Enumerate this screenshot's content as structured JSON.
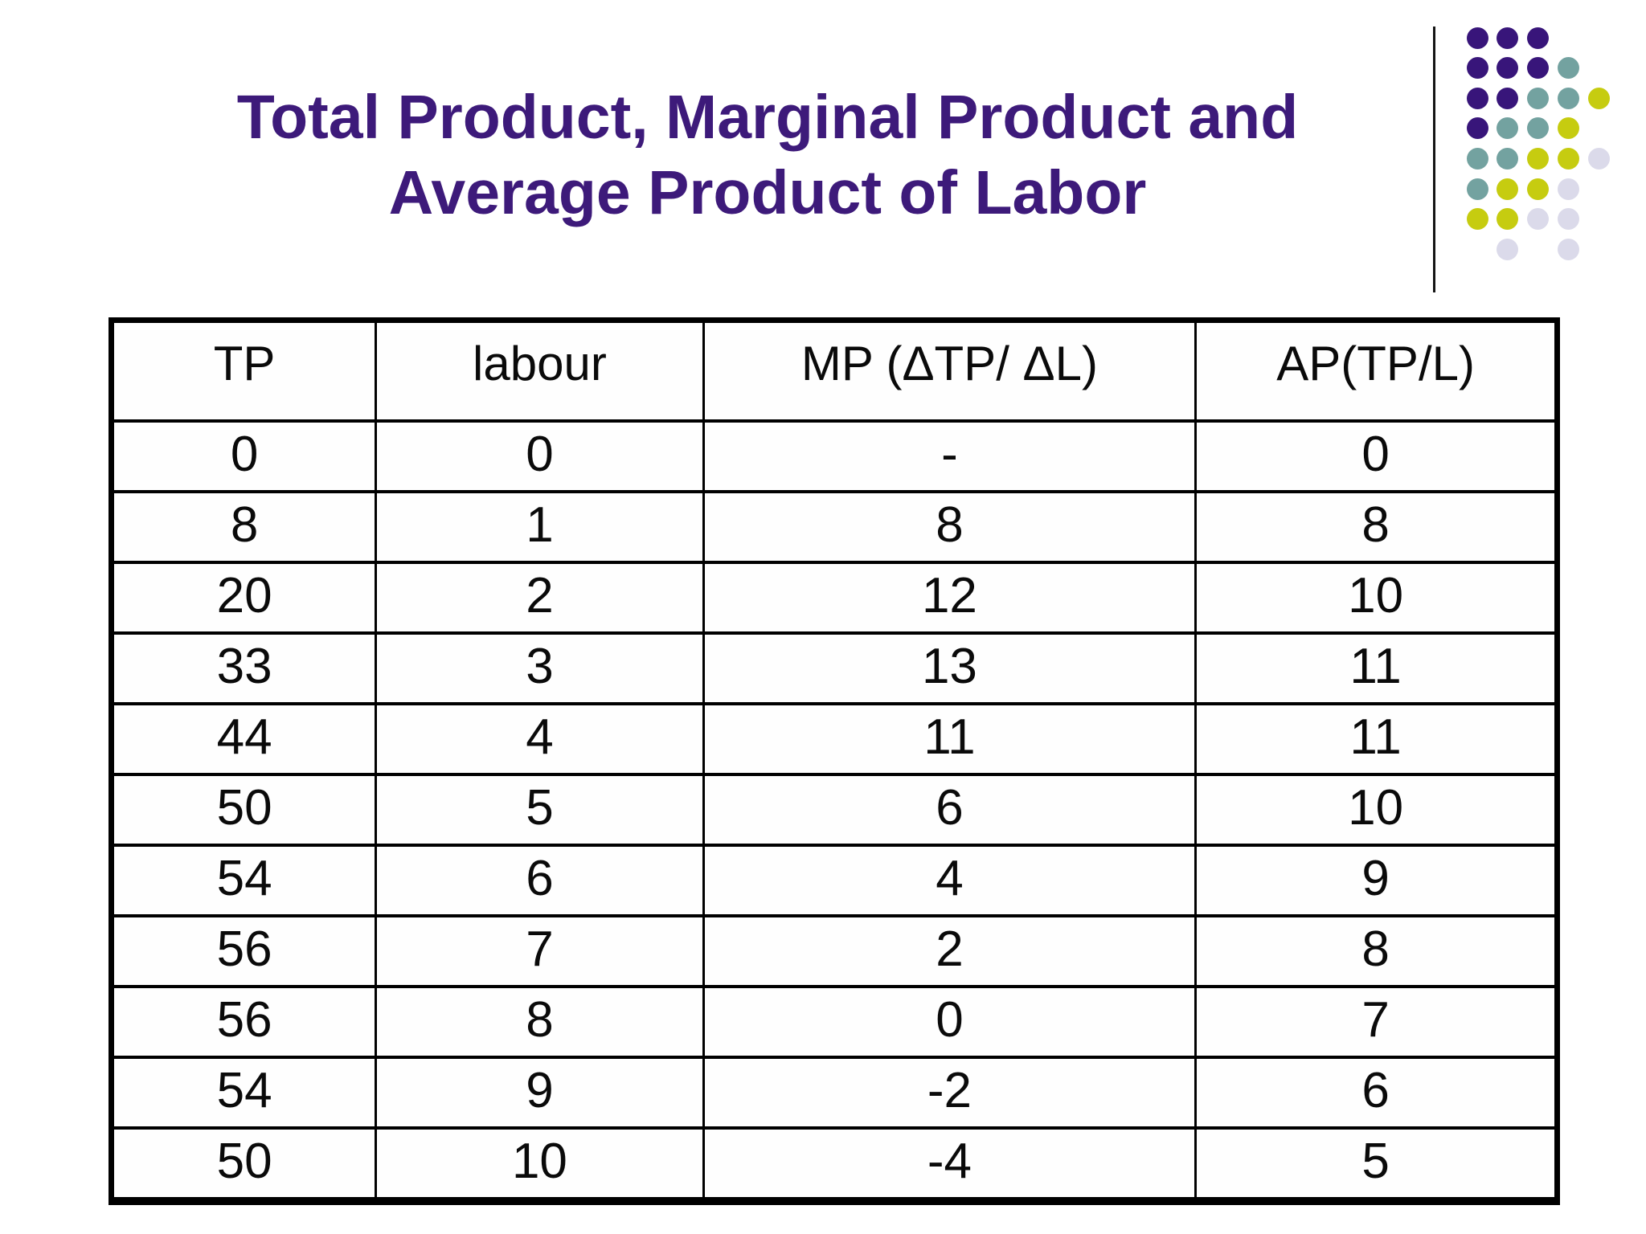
{
  "slide": {
    "title": {
      "line1": "Total Product, Marginal Product and",
      "line2": "Average Product of Labor",
      "color": "#3d1a7a"
    }
  },
  "table": {
    "headers": [
      "TP",
      "labour",
      "MP (ΔTP/ ΔL)",
      "AP(TP/L)"
    ],
    "rows": [
      [
        "0",
        "0",
        "-",
        "0"
      ],
      [
        "8",
        "1",
        "8",
        "8"
      ],
      [
        "20",
        "2",
        "12",
        "10"
      ],
      [
        "33",
        "3",
        "13",
        "11"
      ],
      [
        "44",
        "4",
        "11",
        "11"
      ],
      [
        "50",
        "5",
        "6",
        "10"
      ],
      [
        "54",
        "6",
        "4",
        "9"
      ],
      [
        "56",
        "7",
        "2",
        "8"
      ],
      [
        "56",
        "8",
        "0",
        "7"
      ],
      [
        "54",
        "9",
        "-2",
        "6"
      ],
      [
        "50",
        "10",
        "-4",
        "5"
      ]
    ]
  },
  "decoration": {
    "divider_color": "#141414",
    "dot_colors": {
      "purple": "#38157a",
      "teal": "#73a2a0",
      "chartreuse": "#c6cc10",
      "lavender": "#dbdaea"
    },
    "dots": [
      {
        "row": 1,
        "col": 1,
        "color": "purple"
      },
      {
        "row": 1,
        "col": 2,
        "color": "purple"
      },
      {
        "row": 1,
        "col": 3,
        "color": "purple"
      },
      {
        "row": 2,
        "col": 1,
        "color": "purple"
      },
      {
        "row": 2,
        "col": 2,
        "color": "purple"
      },
      {
        "row": 2,
        "col": 3,
        "color": "purple"
      },
      {
        "row": 2,
        "col": 4,
        "color": "teal"
      },
      {
        "row": 3,
        "col": 1,
        "color": "purple"
      },
      {
        "row": 3,
        "col": 2,
        "color": "purple"
      },
      {
        "row": 3,
        "col": 3,
        "color": "teal"
      },
      {
        "row": 3,
        "col": 4,
        "color": "teal"
      },
      {
        "row": 3,
        "col": 5,
        "color": "chartreuse"
      },
      {
        "row": 4,
        "col": 1,
        "color": "purple"
      },
      {
        "row": 4,
        "col": 2,
        "color": "teal"
      },
      {
        "row": 4,
        "col": 3,
        "color": "teal"
      },
      {
        "row": 4,
        "col": 4,
        "color": "chartreuse"
      },
      {
        "row": 5,
        "col": 1,
        "color": "teal"
      },
      {
        "row": 5,
        "col": 2,
        "color": "teal"
      },
      {
        "row": 5,
        "col": 3,
        "color": "chartreuse"
      },
      {
        "row": 5,
        "col": 4,
        "color": "chartreuse"
      },
      {
        "row": 5,
        "col": 5,
        "color": "lavender"
      },
      {
        "row": 6,
        "col": 1,
        "color": "teal"
      },
      {
        "row": 6,
        "col": 2,
        "color": "chartreuse"
      },
      {
        "row": 6,
        "col": 3,
        "color": "chartreuse"
      },
      {
        "row": 6,
        "col": 4,
        "color": "lavender"
      },
      {
        "row": 7,
        "col": 1,
        "color": "chartreuse"
      },
      {
        "row": 7,
        "col": 2,
        "color": "chartreuse"
      },
      {
        "row": 7,
        "col": 3,
        "color": "lavender"
      },
      {
        "row": 7,
        "col": 4,
        "color": "lavender"
      },
      {
        "row": 8,
        "col": 2,
        "color": "lavender"
      },
      {
        "row": 8,
        "col": 4,
        "color": "lavender"
      }
    ]
  }
}
